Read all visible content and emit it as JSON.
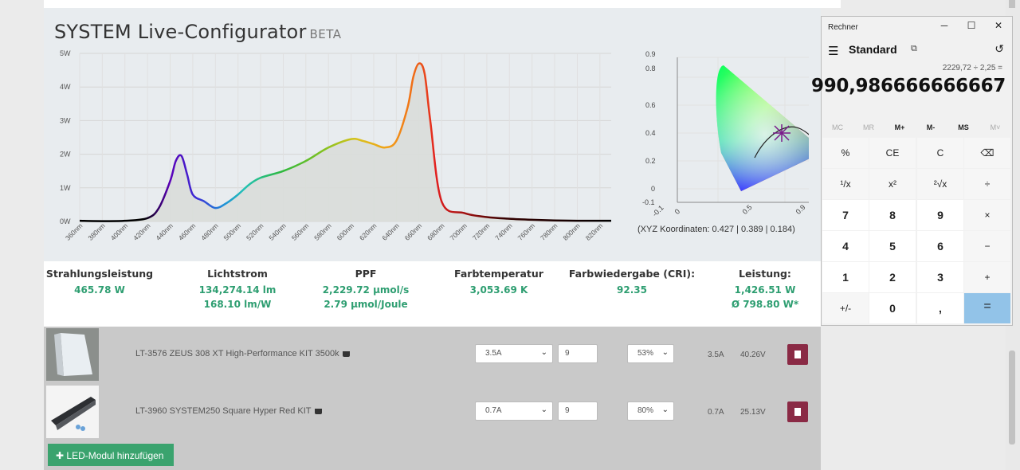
{
  "configurator": {
    "title": "SYSTEM Live-Configurator",
    "badge": "BETA",
    "spectrum": {
      "y_ticks": [
        "5W",
        "4W",
        "3W",
        "2W",
        "1W",
        "0W"
      ],
      "x_ticks": [
        "360nm",
        "380nm",
        "400nm",
        "420nm",
        "440nm",
        "460nm",
        "480nm",
        "500nm",
        "520nm",
        "540nm",
        "560nm",
        "580nm",
        "600nm",
        "620nm",
        "640nm",
        "660nm",
        "680nm",
        "700nm",
        "720nm",
        "740nm",
        "760nm",
        "780nm",
        "800nm",
        "820nm"
      ]
    },
    "cie": {
      "y_ticks": [
        "0.9",
        "0.8",
        "0.6",
        "0.4",
        "0.2",
        "0",
        "-0.1"
      ],
      "x_ticks": [
        "-0.1",
        "0",
        "0.5",
        "0.9"
      ],
      "coords_label": "(XYZ Koordinaten: 0.427 | 0.389 | 0.184)"
    }
  },
  "stats": [
    {
      "label": "Strahlungsleistung",
      "values": [
        "465.78 W"
      ]
    },
    {
      "label": "Lichtstrom",
      "values": [
        "134,274.14 lm",
        "168.10 lm/W"
      ]
    },
    {
      "label": "PPF",
      "values": [
        "2,229.72 µmol/s",
        "2.79 µmol/Joule"
      ]
    },
    {
      "label": "Farbtemperatur",
      "values": [
        "3,053.69 K"
      ]
    },
    {
      "label": "Farbwiedergabe (CRI):",
      "values": [
        "92.35"
      ]
    },
    {
      "label": "Leistung:",
      "values": [
        "1,426.51 W",
        "Ø 798.80 W*"
      ]
    }
  ],
  "modules": [
    {
      "name": "LT-3576 ZEUS 308 XT High-Performance KIT 3500k",
      "current": "3.5A",
      "count": "9",
      "dim": "53%",
      "amp": "3.5A",
      "volt": "40.26V"
    },
    {
      "name": "LT-3960 SYSTEM250 Square Hyper Red KIT",
      "current": "0.7A",
      "count": "9",
      "dim": "80%",
      "amp": "0.7A",
      "volt": "25.13V"
    }
  ],
  "add_button": "LED-Modul hinzufügen",
  "calculator": {
    "window_title": "Rechner",
    "mode": "Standard",
    "expression": "2229,72 ÷ 2,25 =",
    "result": "990,986666666667",
    "memory": [
      "MC",
      "MR",
      "M+",
      "M-",
      "MS",
      "M˅"
    ],
    "keys": [
      [
        "%",
        "CE",
        "C",
        "⌫"
      ],
      [
        "¹/x",
        "x²",
        "²√x",
        "÷"
      ],
      [
        "7",
        "8",
        "9",
        "×"
      ],
      [
        "4",
        "5",
        "6",
        "−"
      ],
      [
        "1",
        "2",
        "3",
        "+"
      ],
      [
        "+/-",
        "0",
        ",",
        "="
      ]
    ]
  },
  "chart_data": {
    "type": "area",
    "title": "",
    "xlabel": "",
    "ylabel": "",
    "x_unit": "nm",
    "y_unit": "W",
    "xlim": [
      360,
      830
    ],
    "ylim": [
      0,
      5
    ],
    "x": [
      360,
      380,
      400,
      420,
      430,
      440,
      445,
      450,
      455,
      460,
      470,
      480,
      490,
      500,
      510,
      520,
      540,
      560,
      580,
      600,
      610,
      620,
      630,
      640,
      650,
      655,
      660,
      665,
      670,
      680,
      700,
      720,
      740,
      760,
      780,
      800,
      820,
      830
    ],
    "y": [
      0.02,
      0.01,
      0.02,
      0.1,
      0.4,
      1.2,
      1.8,
      1.95,
      1.4,
      0.8,
      0.6,
      0.4,
      0.55,
      0.8,
      1.1,
      1.3,
      1.5,
      1.8,
      2.2,
      2.45,
      2.4,
      2.3,
      2.2,
      2.4,
      3.4,
      4.3,
      4.7,
      4.4,
      3.0,
      0.6,
      0.25,
      0.13,
      0.08,
      0.05,
      0.03,
      0.02,
      0.02,
      0.02
    ]
  }
}
